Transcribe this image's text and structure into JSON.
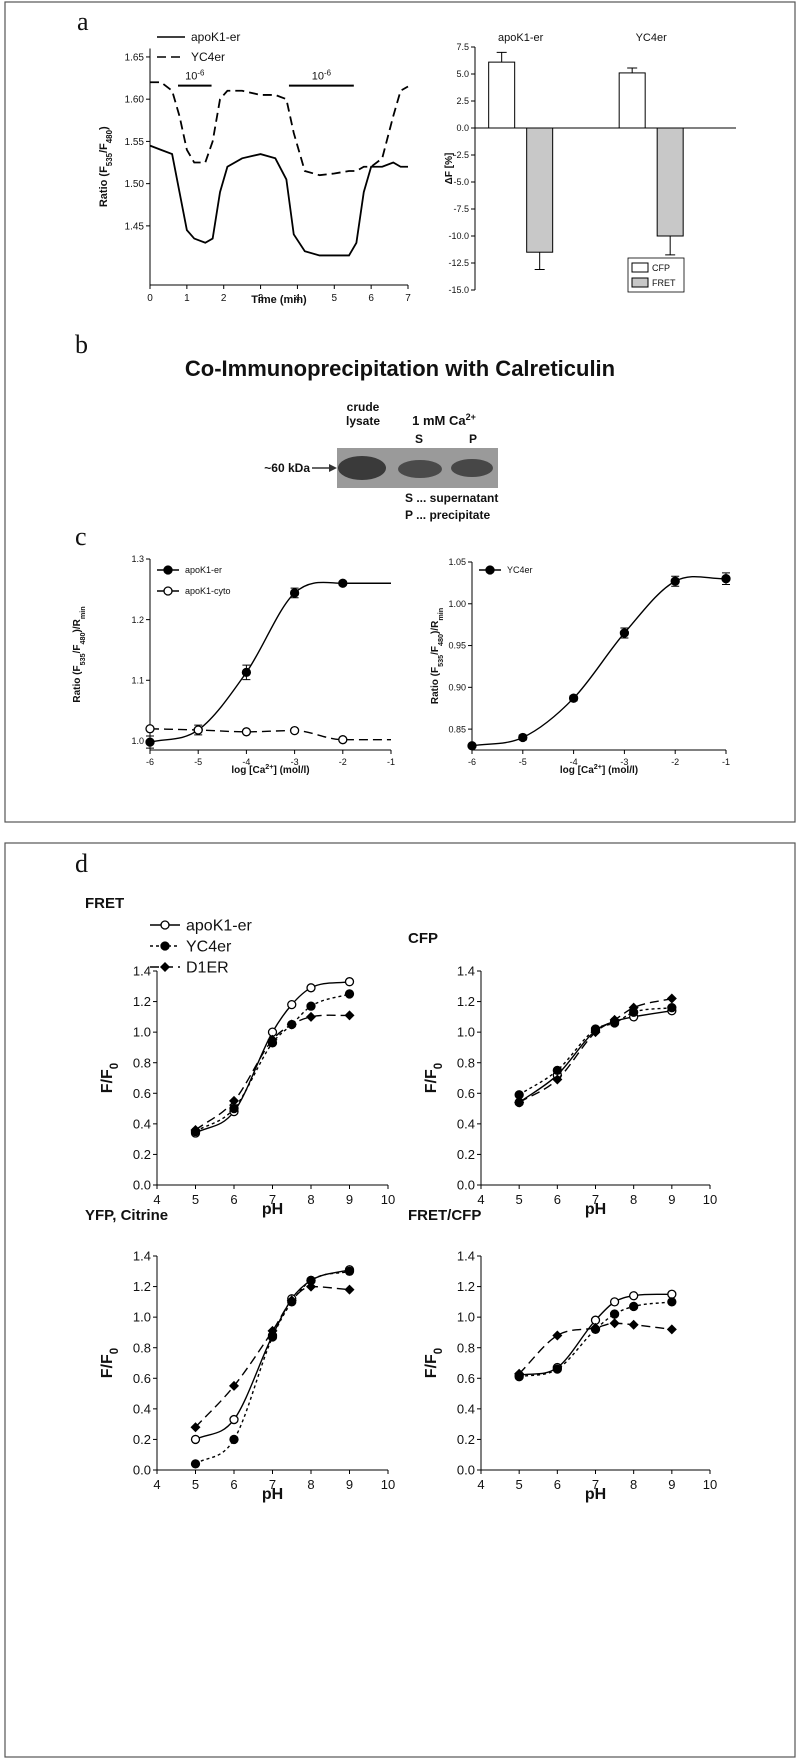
{
  "panel_labels": [
    "a",
    "b",
    "c",
    "d"
  ],
  "blot": {
    "title": "Co-Immunoprecipitation with Calreticulin",
    "lane_header": [
      "crude",
      "lysate"
    ],
    "condition": [
      "1 mM Ca",
      "2+"
    ],
    "lanes": [
      "S",
      "P"
    ],
    "marker": "~60 kDa",
    "key": [
      "S ... supernatant",
      "P ... precipitate"
    ]
  },
  "chart_data": [
    {
      "type": "line",
      "xlabel": "Time (min)",
      "ylabel": [
        "Ratio (F",
        "535",
        "/F",
        "480",
        ")"
      ],
      "x": [
        0,
        0.3,
        0.6,
        0.8,
        1.0,
        1.2,
        1.5,
        1.7,
        1.9,
        2.1,
        2.5,
        3.0,
        3.4,
        3.7,
        3.9,
        4.2,
        4.6,
        5.0,
        5.4,
        5.6,
        5.8,
        6.0,
        6.3,
        6.6,
        6.8,
        7.0
      ],
      "xlim": [
        0,
        7
      ],
      "xticks": [
        0,
        1,
        2,
        3,
        4,
        5,
        6,
        7
      ],
      "ylim": [
        1.38,
        1.66
      ],
      "yticks": [
        1.45,
        {
          "value": 1.5,
          "label": "1.50"
        },
        1.55,
        {
          "value": 1.6,
          "label": "1.60"
        },
        1.65
      ],
      "legend": "upper left",
      "series": [
        {
          "name": "apoK1-er",
          "color": "#000000",
          "line_style": "solid",
          "values": [
            1.545,
            1.54,
            1.535,
            1.49,
            1.445,
            1.435,
            1.43,
            1.435,
            1.49,
            1.52,
            1.53,
            1.535,
            1.53,
            1.505,
            1.44,
            1.42,
            1.415,
            1.415,
            1.415,
            1.43,
            1.49,
            1.52,
            1.52,
            1.525,
            1.52,
            1.52
          ]
        },
        {
          "name": "YC4er",
          "color": "#000000",
          "line_style": "dashed",
          "values": [
            1.62,
            1.62,
            1.61,
            1.58,
            1.54,
            1.525,
            1.525,
            1.55,
            1.6,
            1.61,
            1.61,
            1.605,
            1.605,
            1.6,
            1.56,
            1.515,
            1.51,
            1.512,
            1.515,
            1.515,
            1.52,
            1.52,
            1.53,
            1.58,
            1.61,
            1.615
          ]
        }
      ],
      "annotations": [
        {
          "label": [
            "10",
            "-6"
          ],
          "start": 0.76,
          "end": 1.67,
          "y": 1.616
        },
        {
          "label": [
            "10",
            "-6"
          ],
          "start": 3.77,
          "end": 5.53,
          "y": 1.616
        }
      ]
    },
    {
      "type": "bar",
      "ylabel": "ΔF [%]",
      "categories": [
        "apoK1-er",
        "YC4er"
      ],
      "ylim": [
        -15,
        7.5
      ],
      "yticks": [
        {
          "value": -15,
          "label": "-15.0"
        },
        -12.5,
        {
          "value": -10,
          "label": "-10.0"
        },
        -7.5,
        {
          "value": -5,
          "label": "-5.0"
        },
        -2.5,
        {
          "value": 0,
          "label": "0.0"
        },
        2.5,
        {
          "value": 5,
          "label": "5.0"
        },
        7.5
      ],
      "legend": "lower right",
      "series": [
        {
          "name": "CFP",
          "color": "#ffffff",
          "values": [
            6.1,
            5.1
          ],
          "errors": [
            0.9,
            0.45
          ]
        },
        {
          "name": "FRET",
          "color": "#c8c8c8",
          "values": [
            -11.5,
            -10.0
          ],
          "errors": [
            1.6,
            1.75
          ]
        }
      ]
    },
    {
      "type": "scatter",
      "xlabel": [
        "log [Ca",
        "2+",
        "] (mol/l)"
      ],
      "ylabel": [
        "Ratio (F",
        "535",
        "/F",
        "480",
        ")/R",
        "min"
      ],
      "x": [
        -6,
        -5,
        -4,
        -3,
        -2
      ],
      "xlim": [
        -6,
        -1
      ],
      "xticks": [
        -6,
        -5,
        -4,
        -3,
        -2,
        -1
      ],
      "ylim": [
        0.985,
        1.3
      ],
      "yticks": [
        {
          "value": 1,
          "label": "1.0"
        },
        1.1,
        1.2,
        1.3
      ],
      "legend": "upper left",
      "series": [
        {
          "name": "apoK1-er",
          "color": "#000000",
          "marker": "circle-filled",
          "line_style": "solid",
          "values": [
            0.998,
            1.018,
            1.113,
            1.244,
            1.26
          ],
          "errors": [
            0.01,
            0.008,
            0.012,
            0.008,
            0.003
          ]
        },
        {
          "name": "apoK1-cyto",
          "color": "#000000",
          "marker": "circle-open",
          "line_style": "dashed",
          "values": [
            1.02,
            1.018,
            1.015,
            1.017,
            1.002
          ]
        }
      ]
    },
    {
      "type": "scatter",
      "xlabel": [
        "log [Ca",
        "2+",
        "] (mol/l)"
      ],
      "ylabel": [
        "Ratio (F",
        "535",
        "/F",
        "480",
        ")/R",
        "min"
      ],
      "x": [
        -6,
        -5,
        -4,
        -3,
        -2,
        -1
      ],
      "xlim": [
        -6,
        -1
      ],
      "xticks": [
        -6,
        -5,
        -4,
        -3,
        -2,
        -1
      ],
      "ylim": [
        0.825,
        1.05
      ],
      "yticks": [
        0.85,
        {
          "value": 0.9,
          "label": "0.90"
        },
        0.95,
        {
          "value": 1,
          "label": "1.00"
        },
        1.05
      ],
      "legend": "upper left",
      "series": [
        {
          "name": "YC4er",
          "color": "#000000",
          "marker": "circle-filled",
          "line_style": "solid",
          "values": [
            0.83,
            0.84,
            0.887,
            0.965,
            1.027,
            1.03
          ],
          "errors": [
            0.002,
            0.003,
            0.003,
            0.006,
            0.006,
            0.007
          ]
        }
      ]
    },
    {
      "type": "scatter",
      "title": "FRET",
      "xlabel": "pH",
      "ylabel": [
        "F/F",
        "0"
      ],
      "x": [
        5,
        6,
        7,
        7.5,
        8,
        9
      ],
      "xlim": [
        4,
        10
      ],
      "xticks": [
        4,
        5,
        6,
        7,
        8,
        9,
        10
      ],
      "ylim": [
        0,
        1.4
      ],
      "yticks": [
        {
          "value": 0,
          "label": "0.0"
        },
        0.2,
        0.4,
        0.6,
        0.8,
        {
          "value": 1,
          "label": "1.0"
        },
        1.2,
        1.4
      ],
      "legend": "upper left",
      "series": [
        {
          "name": "apoK1-er",
          "color": "#000000",
          "marker": "circle-open",
          "line_style": "solid",
          "values": [
            0.34,
            0.48,
            1.0,
            1.18,
            1.29,
            1.33
          ]
        },
        {
          "name": "YC4er",
          "color": "#000000",
          "marker": "circle-filled",
          "line_style": "dotted",
          "values": [
            0.35,
            0.5,
            0.93,
            1.05,
            1.17,
            1.25
          ]
        },
        {
          "name": "D1ER",
          "color": "#000000",
          "marker": "diamond",
          "line_style": "dashed",
          "values": [
            0.36,
            0.55,
            0.95,
            1.05,
            1.1,
            1.11
          ]
        }
      ]
    },
    {
      "type": "scatter",
      "title": "CFP",
      "xlabel": "pH",
      "ylabel": [
        "F/F",
        "0"
      ],
      "x": [
        5,
        6,
        7,
        7.5,
        8,
        9
      ],
      "xlim": [
        4,
        10
      ],
      "xticks": [
        4,
        5,
        6,
        7,
        8,
        9,
        10
      ],
      "ylim": [
        0,
        1.4
      ],
      "yticks": [
        {
          "value": 0,
          "label": "0.0"
        },
        0.2,
        0.4,
        0.6,
        0.8,
        {
          "value": 1,
          "label": "1.0"
        },
        1.2,
        1.4
      ],
      "series": [
        {
          "name": "apoK1-er",
          "color": "#000000",
          "marker": "circle-open",
          "line_style": "solid",
          "values": [
            0.54,
            0.72,
            1.01,
            1.07,
            1.1,
            1.14
          ]
        },
        {
          "name": "YC4er",
          "color": "#000000",
          "marker": "circle-filled",
          "line_style": "dotted",
          "values": [
            0.59,
            0.75,
            1.02,
            1.06,
            1.13,
            1.16
          ]
        },
        {
          "name": "D1ER",
          "color": "#000000",
          "marker": "diamond",
          "line_style": "dashed",
          "values": [
            0.54,
            0.69,
            1.0,
            1.08,
            1.16,
            1.22
          ]
        }
      ]
    },
    {
      "type": "scatter",
      "title": "YFP, Citrine",
      "xlabel": "pH",
      "ylabel": [
        "F/F",
        "0"
      ],
      "x": [
        5,
        6,
        7,
        7.5,
        8,
        9
      ],
      "xlim": [
        4,
        10
      ],
      "xticks": [
        4,
        5,
        6,
        7,
        8,
        9,
        10
      ],
      "ylim": [
        0,
        1.4
      ],
      "yticks": [
        {
          "value": 0,
          "label": "0.0"
        },
        0.2,
        0.4,
        0.6,
        0.8,
        {
          "value": 1,
          "label": "1.0"
        },
        1.2,
        1.4
      ],
      "series": [
        {
          "name": "apoK1-er",
          "color": "#000000",
          "marker": "circle-open",
          "line_style": "solid",
          "values": [
            0.2,
            0.33,
            0.88,
            1.12,
            1.24,
            1.31
          ]
        },
        {
          "name": "YC4er",
          "color": "#000000",
          "marker": "circle-filled",
          "line_style": "dotted",
          "values": [
            0.04,
            0.2,
            0.87,
            1.1,
            1.24,
            1.3
          ]
        },
        {
          "name": "D1ER",
          "color": "#000000",
          "marker": "diamond",
          "line_style": "dashed",
          "values": [
            0.28,
            0.55,
            0.91,
            1.11,
            1.2,
            1.18
          ]
        }
      ]
    },
    {
      "type": "scatter",
      "title": "FRET/CFP",
      "xlabel": "pH",
      "ylabel": [
        "F/F",
        "0"
      ],
      "x": [
        5,
        6,
        7,
        7.5,
        8,
        9
      ],
      "xlim": [
        4,
        10
      ],
      "xticks": [
        4,
        5,
        6,
        7,
        8,
        9,
        10
      ],
      "ylim": [
        0,
        1.4
      ],
      "yticks": [
        {
          "value": 0,
          "label": "0.0"
        },
        0.2,
        0.4,
        0.6,
        0.8,
        {
          "value": 1,
          "label": "1.0"
        },
        1.2,
        1.4
      ],
      "series": [
        {
          "name": "apoK1-er",
          "color": "#000000",
          "marker": "circle-open",
          "line_style": "solid",
          "values": [
            0.62,
            0.67,
            0.98,
            1.1,
            1.14,
            1.15
          ]
        },
        {
          "name": "YC4er",
          "color": "#000000",
          "marker": "circle-filled",
          "line_style": "dotted",
          "values": [
            0.61,
            0.66,
            0.92,
            1.02,
            1.07,
            1.1
          ]
        },
        {
          "name": "D1ER",
          "color": "#000000",
          "marker": "diamond",
          "line_style": "dashed",
          "values": [
            0.63,
            0.88,
            0.93,
            0.96,
            0.95,
            0.92
          ]
        }
      ]
    }
  ]
}
